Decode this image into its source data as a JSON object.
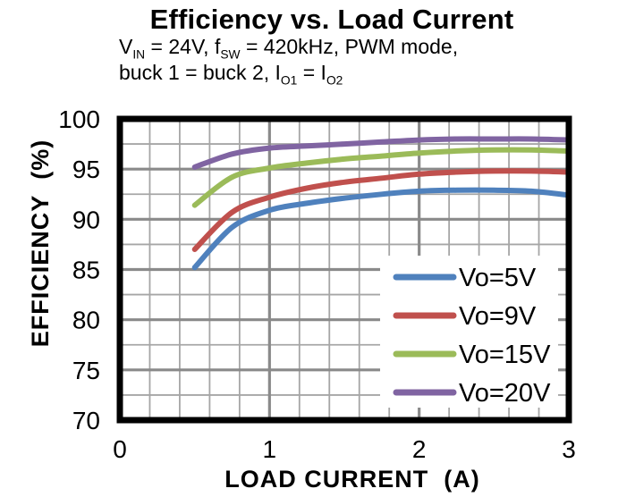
{
  "page": {
    "background": "#ffffff"
  },
  "header": {
    "title": "Efficiency vs. Load Current",
    "subtitle_lines": [
      [
        {
          "t": "V"
        },
        {
          "t": "IN",
          "sub": true
        },
        {
          "t": " = 24V, f"
        },
        {
          "t": "SW",
          "sub": true
        },
        {
          "t": " = 420kHz, PWM mode,"
        }
      ],
      [
        {
          "t": "buck 1 = buck 2, I"
        },
        {
          "t": "O1",
          "sub": true
        },
        {
          "t": " = I"
        },
        {
          "t": "O2",
          "sub": true
        }
      ]
    ]
  },
  "chart_data": {
    "type": "line",
    "title": "Efficiency vs. Load Current",
    "subtitle": "VIN = 24V, fSW = 420kHz, PWM mode, buck 1 = buck 2, IO1 = IO2",
    "xlabel": "LOAD CURRENT  (A)",
    "ylabel": "EFFICIENCY  (%)",
    "xlim": [
      0,
      3
    ],
    "ylim": [
      70,
      100
    ],
    "xticks": [
      0,
      1,
      2,
      3
    ],
    "yticks": [
      100,
      95,
      90,
      85,
      80,
      75,
      70
    ],
    "x_minor_step": 0.2,
    "y_minor_step": 2.5,
    "x_major_step": 1,
    "y_major_step": 5,
    "grid": {
      "on": true,
      "minor_color": "#A6A6A6",
      "major_color": "#8A8A8A",
      "frame_color": "#000000"
    },
    "legend_position": "bottom-right-inside",
    "series": [
      {
        "name": "Vo=5V",
        "color": "#4F81BD",
        "points": [
          [
            0.5,
            85.2
          ],
          [
            0.75,
            89.2
          ],
          [
            1,
            90.9
          ],
          [
            1.25,
            91.6
          ],
          [
            1.5,
            92.1
          ],
          [
            1.75,
            92.5
          ],
          [
            2,
            92.8
          ],
          [
            2.25,
            92.9
          ],
          [
            2.5,
            92.9
          ],
          [
            2.75,
            92.8
          ],
          [
            3,
            92.4
          ]
        ]
      },
      {
        "name": "Vo=9V",
        "color": "#C0504D",
        "points": [
          [
            0.5,
            87.0
          ],
          [
            0.75,
            90.7
          ],
          [
            1,
            92.2
          ],
          [
            1.25,
            93.1
          ],
          [
            1.5,
            93.7
          ],
          [
            1.75,
            94.1
          ],
          [
            2,
            94.5
          ],
          [
            2.25,
            94.7
          ],
          [
            2.5,
            94.8
          ],
          [
            2.75,
            94.8
          ],
          [
            3,
            94.7
          ]
        ]
      },
      {
        "name": "Vo=15V",
        "color": "#9BBB59",
        "points": [
          [
            0.5,
            91.4
          ],
          [
            0.75,
            94.2
          ],
          [
            1,
            95.1
          ],
          [
            1.25,
            95.6
          ],
          [
            1.5,
            96.0
          ],
          [
            1.75,
            96.3
          ],
          [
            2,
            96.6
          ],
          [
            2.25,
            96.8
          ],
          [
            2.5,
            96.9
          ],
          [
            2.75,
            96.9
          ],
          [
            3,
            96.8
          ]
        ]
      },
      {
        "name": "Vo=20V",
        "color": "#8064A2",
        "points": [
          [
            0.5,
            95.2
          ],
          [
            0.75,
            96.5
          ],
          [
            1,
            97.1
          ],
          [
            1.25,
            97.3
          ],
          [
            1.5,
            97.5
          ],
          [
            1.75,
            97.7
          ],
          [
            2,
            97.9
          ],
          [
            2.25,
            98.0
          ],
          [
            2.5,
            98.0
          ],
          [
            2.75,
            98.0
          ],
          [
            3,
            97.9
          ]
        ]
      }
    ]
  }
}
